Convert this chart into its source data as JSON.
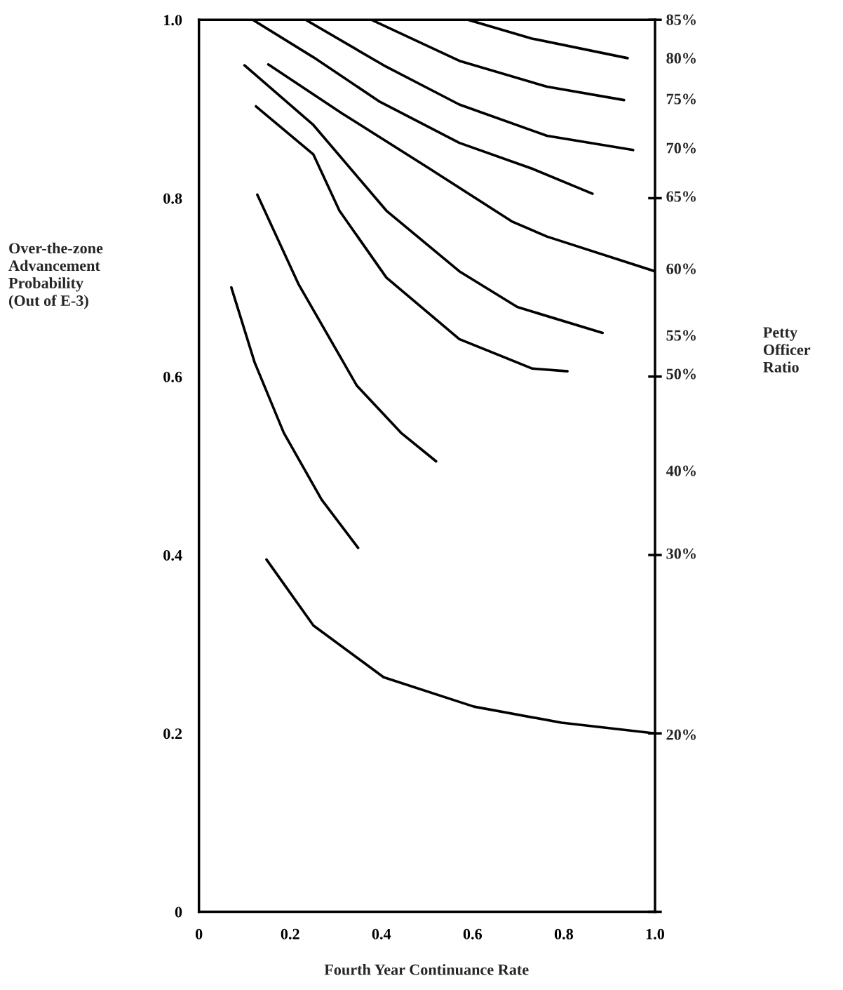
{
  "chart_data": {
    "type": "line",
    "xlabel": "Fourth Year Continuance Rate",
    "ylabel": "Over-the-zone\nAdvancement\nProbability\n(Out of E-3)",
    "xlim": [
      0,
      1
    ],
    "ylim": [
      0,
      1
    ],
    "xticks": [
      0,
      0.2,
      0.4,
      0.6,
      0.8,
      {
        "value": 1,
        "label": "1.0"
      }
    ],
    "yticks": [
      0,
      0.2,
      0.4,
      0.6,
      0.8,
      {
        "value": 1,
        "label": "1.0"
      }
    ],
    "grid": false,
    "marker": "none",
    "line_style": "solid",
    "annotations": [
      "85%",
      "80%",
      "75%",
      "70%",
      "65%",
      "60%",
      "55%",
      "50%",
      "40%",
      "30%",
      "20%",
      "Petty\nOfficer\nRatio"
    ],
    "series": [
      {
        "color": "#000000",
        "x": [
          0.59,
          0.73,
          0.94
        ],
        "values": [
          1.0,
          0.979,
          0.957
        ]
      },
      {
        "color": "#000000",
        "x": [
          0.378,
          0.571,
          0.763,
          0.932
        ],
        "values": [
          1.0,
          0.954,
          0.925,
          0.91
        ]
      },
      {
        "color": "#000000",
        "x": [
          0.234,
          0.405,
          0.571,
          0.763,
          0.952
        ],
        "values": [
          1.0,
          0.949,
          0.905,
          0.87,
          0.854
        ]
      },
      {
        "color": "#000000",
        "x": [
          0.118,
          0.251,
          0.397,
          0.571,
          0.731,
          0.863
        ],
        "values": [
          1.0,
          0.958,
          0.908,
          0.862,
          0.833,
          0.805
        ]
      },
      {
        "color": "#000000",
        "x": [
          0.152,
          0.314,
          0.506,
          0.686,
          0.763,
          1.0
        ],
        "values": [
          0.95,
          0.895,
          0.833,
          0.774,
          0.757,
          0.718
        ]
      },
      {
        "color": "#000000",
        "x": [
          0.1,
          0.251,
          0.411,
          0.571,
          0.698,
          0.885
        ],
        "values": [
          0.949,
          0.882,
          0.786,
          0.718,
          0.678,
          0.649
        ]
      },
      {
        "color": "#000000",
        "x": [
          0.125,
          0.251,
          0.308,
          0.411,
          0.571,
          0.731,
          0.808
        ],
        "values": [
          0.903,
          0.849,
          0.786,
          0.711,
          0.642,
          0.609,
          0.606
        ]
      },
      {
        "color": "#000000",
        "x": [
          0.128,
          0.218,
          0.346,
          0.443,
          0.52
        ],
        "values": [
          0.804,
          0.704,
          0.59,
          0.537,
          0.505
        ]
      },
      {
        "color": "#000000",
        "x": [
          0.071,
          0.122,
          0.186,
          0.269,
          0.349
        ],
        "values": [
          0.7,
          0.616,
          0.537,
          0.462,
          0.408
        ]
      },
      {
        "color": "#000000",
        "x": [
          0.148,
          0.251,
          0.405,
          0.603,
          0.795,
          1.0
        ],
        "values": [
          0.395,
          0.321,
          0.263,
          0.23,
          0.212,
          0.2
        ]
      }
    ]
  }
}
